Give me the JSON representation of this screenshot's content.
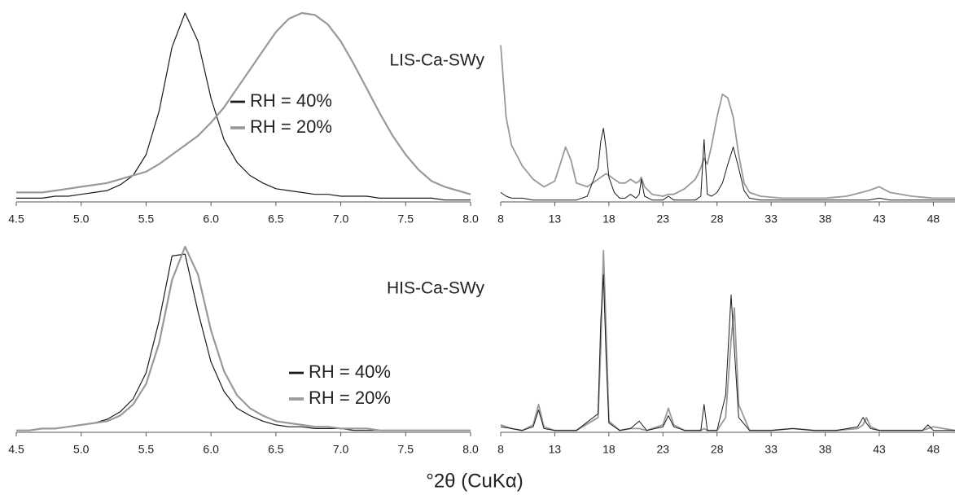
{
  "xlabel": "°2θ (CuKα)",
  "chart_data": [
    {
      "type": "line",
      "annotation": "LIS-Ca-SWy",
      "x": [
        4.5,
        4.6,
        4.7,
        4.8,
        4.9,
        5.0,
        5.1,
        5.2,
        5.3,
        5.4,
        5.5,
        5.6,
        5.7,
        5.8,
        5.9,
        6.0,
        6.1,
        6.2,
        6.3,
        6.4,
        6.5,
        6.6,
        6.7,
        6.8,
        6.9,
        7.0,
        7.1,
        7.2,
        7.3,
        7.4,
        7.5,
        7.6,
        7.7,
        7.8,
        7.9,
        8.0
      ],
      "xlim": [
        4.5,
        8.0
      ],
      "xticks": [
        4.5,
        {
          "value": 5,
          "label": "5.0"
        },
        5.5,
        {
          "value": 6,
          "label": "6.0"
        },
        6.5,
        {
          "value": 7,
          "label": "7.0"
        },
        7.5,
        {
          "value": 8,
          "label": "8.0"
        }
      ],
      "ylim": [
        0,
        100
      ],
      "series": [
        {
          "name": "RH = 40%",
          "color": "#1a1a1a",
          "width": 1.2,
          "values": [
            2,
            2,
            2,
            3,
            3,
            4,
            5,
            6,
            9,
            14,
            25,
            48,
            82,
            100,
            85,
            55,
            33,
            21,
            14,
            10,
            7,
            6,
            5,
            4,
            4,
            3,
            3,
            3,
            2,
            2,
            2,
            2,
            2,
            1,
            1,
            1
          ]
        },
        {
          "name": "RH = 20%",
          "color": "#999999",
          "width": 2.2,
          "values": [
            5,
            5,
            5,
            6,
            7,
            8,
            9,
            10,
            12,
            14,
            16,
            20,
            25,
            30,
            35,
            42,
            50,
            60,
            70,
            80,
            90,
            97,
            100,
            99,
            94,
            85,
            73,
            60,
            47,
            35,
            25,
            17,
            11,
            8,
            6,
            4
          ]
        }
      ]
    },
    {
      "type": "line",
      "x": [
        8,
        8.5,
        9,
        10,
        11,
        12,
        13,
        13.5,
        14,
        14.5,
        15,
        16,
        17,
        17.25,
        17.5,
        17.75,
        18,
        18.5,
        19,
        19.5,
        20,
        20.5,
        20.8,
        21,
        21.3,
        22,
        23,
        23.5,
        24,
        25,
        26,
        26.5,
        26.8,
        27.1,
        27.5,
        28,
        28.5,
        29,
        29.5,
        30,
        30.5,
        31,
        32,
        34,
        36,
        38,
        40,
        42,
        43,
        44,
        46,
        48,
        50
      ],
      "xlim": [
        8,
        50
      ],
      "xticks": [
        8,
        13,
        18,
        23,
        28,
        33,
        38,
        43,
        48
      ],
      "ylim": [
        0,
        100
      ],
      "series": [
        {
          "color": "#999999",
          "width": 1.8,
          "values": [
            83,
            45,
            30,
            19,
            12,
            8,
            11,
            20,
            29,
            22,
            10,
            8,
            12,
            13,
            14,
            15,
            14,
            12,
            10,
            10,
            12,
            10,
            11,
            13,
            8,
            4,
            3,
            4,
            4,
            7,
            12,
            18,
            23,
            20,
            30,
            45,
            57,
            55,
            45,
            25,
            10,
            5,
            3,
            2,
            2,
            2,
            3,
            6,
            8,
            5,
            3,
            2,
            2
          ]
        },
        {
          "color": "#1a1a1a",
          "width": 1,
          "values": [
            5,
            3,
            2,
            2,
            1,
            1,
            1,
            1,
            1,
            1,
            1,
            3,
            18,
            32,
            39,
            28,
            13,
            5,
            2,
            2,
            4,
            2,
            4,
            12,
            3,
            1,
            1,
            3,
            1,
            1,
            1,
            3,
            33,
            4,
            3,
            5,
            10,
            20,
            29,
            18,
            6,
            2,
            1,
            1,
            1,
            1,
            1,
            1,
            2,
            1,
            1,
            1,
            1
          ]
        }
      ]
    },
    {
      "type": "line",
      "annotation": "HIS-Ca-SWy",
      "x": [
        4.5,
        4.6,
        4.7,
        4.8,
        4.9,
        5.0,
        5.1,
        5.2,
        5.3,
        5.4,
        5.5,
        5.6,
        5.7,
        5.8,
        5.9,
        6.0,
        6.1,
        6.2,
        6.3,
        6.4,
        6.5,
        6.6,
        6.7,
        6.8,
        6.9,
        7.0,
        7.1,
        7.2,
        7.3,
        7.4,
        7.5,
        7.6,
        7.7,
        7.8,
        7.9,
        8.0
      ],
      "xlim": [
        4.5,
        8.0
      ],
      "xticks": [
        4.5,
        {
          "value": 5,
          "label": "5.0"
        },
        5.5,
        {
          "value": 6,
          "label": "6.0"
        },
        6.5,
        {
          "value": 7,
          "label": "7.0"
        },
        7.5,
        {
          "value": 8,
          "label": "8.0"
        }
      ],
      "ylim": [
        0,
        100
      ],
      "series": [
        {
          "name": "RH = 40%",
          "color": "#1a1a1a",
          "width": 1.2,
          "values": [
            1,
            1,
            2,
            2,
            3,
            4,
            5,
            7,
            11,
            18,
            32,
            60,
            95,
            96,
            65,
            38,
            22,
            13,
            9,
            6,
            4,
            3,
            3,
            2,
            2,
            2,
            1,
            1,
            1,
            1,
            1,
            1,
            1,
            1,
            1,
            1
          ]
        },
        {
          "name": "RH = 20%",
          "color": "#999999",
          "width": 2.2,
          "values": [
            1,
            1,
            2,
            2,
            3,
            4,
            5,
            6,
            9,
            15,
            26,
            48,
            82,
            100,
            85,
            55,
            33,
            20,
            13,
            9,
            6,
            5,
            4,
            3,
            3,
            2,
            2,
            2,
            1,
            1,
            1,
            1,
            1,
            1,
            1,
            1
          ]
        }
      ]
    },
    {
      "type": "line",
      "x": [
        8,
        9,
        10,
        11,
        11.5,
        12,
        13,
        15,
        17,
        17.25,
        17.5,
        17.75,
        18,
        19,
        20,
        20.8,
        21.5,
        23,
        23.5,
        24,
        25,
        26.5,
        26.8,
        27.1,
        28,
        28.8,
        29.3,
        29.6,
        30,
        31,
        33,
        35,
        37,
        39,
        41,
        41.5,
        41.8,
        42.2,
        43,
        45,
        47,
        47.5,
        48,
        50
      ],
      "xlim": [
        8,
        50
      ],
      "xticks": [
        8,
        13,
        18,
        23,
        28,
        33,
        38,
        43,
        48
      ],
      "ylim": [
        0,
        100
      ],
      "series": [
        {
          "color": "#999999",
          "width": 1.8,
          "values": [
            4,
            2,
            1,
            4,
            15,
            3,
            1,
            1,
            8,
            45,
            98,
            55,
            6,
            1,
            2,
            2,
            1,
            4,
            13,
            4,
            1,
            1,
            2,
            1,
            1,
            8,
            50,
            67,
            15,
            1,
            1,
            2,
            1,
            1,
            2,
            4,
            8,
            3,
            1,
            1,
            1,
            2,
            3,
            1
          ]
        },
        {
          "color": "#1a1a1a",
          "width": 1,
          "values": [
            3,
            2,
            1,
            3,
            12,
            2,
            1,
            1,
            10,
            60,
            85,
            40,
            5,
            1,
            2,
            6,
            1,
            3,
            9,
            3,
            1,
            1,
            15,
            1,
            1,
            20,
            74,
            45,
            8,
            1,
            1,
            2,
            1,
            1,
            3,
            8,
            5,
            2,
            1,
            1,
            1,
            4,
            1,
            1
          ]
        }
      ]
    }
  ]
}
